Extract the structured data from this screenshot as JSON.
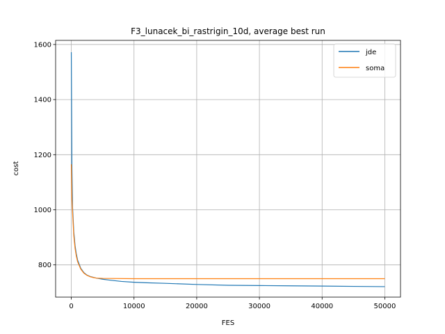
{
  "chart_data": {
    "type": "line",
    "title": "F3_lunacek_bi_rastrigin_10d, average best run",
    "xlabel": "FES",
    "ylabel": "cost",
    "xlim": [
      -2500,
      52500
    ],
    "ylim": [
      683,
      1615
    ],
    "xticks": [
      0,
      10000,
      20000,
      30000,
      40000,
      50000
    ],
    "yticks": [
      800,
      1000,
      1200,
      1400,
      1600
    ],
    "grid": true,
    "legend_position": "top-right",
    "series": [
      {
        "name": "jde",
        "color": "#1f77b4",
        "x": [
          0,
          100,
          200,
          400,
          600,
          800,
          1000,
          1500,
          2000,
          2500,
          3000,
          4000,
          5000,
          6000,
          8000,
          10000,
          12000,
          15000,
          20000,
          25000,
          30000,
          35000,
          40000,
          45000,
          50000
        ],
        "y": [
          1572,
          1150,
          1010,
          920,
          870,
          840,
          818,
          788,
          772,
          763,
          758,
          752,
          748,
          745,
          740,
          737,
          735,
          733,
          729,
          726,
          725,
          724,
          723,
          722,
          721
        ]
      },
      {
        "name": "soma",
        "color": "#ff7f0e",
        "x": [
          0,
          100,
          200,
          400,
          600,
          800,
          1000,
          1500,
          2000,
          2500,
          3000,
          3500,
          4000,
          5000,
          10000,
          20000,
          30000,
          40000,
          50000
        ],
        "y": [
          1165,
          1040,
          990,
          905,
          860,
          832,
          812,
          785,
          770,
          762,
          757,
          754,
          752,
          751,
          750,
          750,
          750,
          750,
          750
        ]
      }
    ]
  }
}
